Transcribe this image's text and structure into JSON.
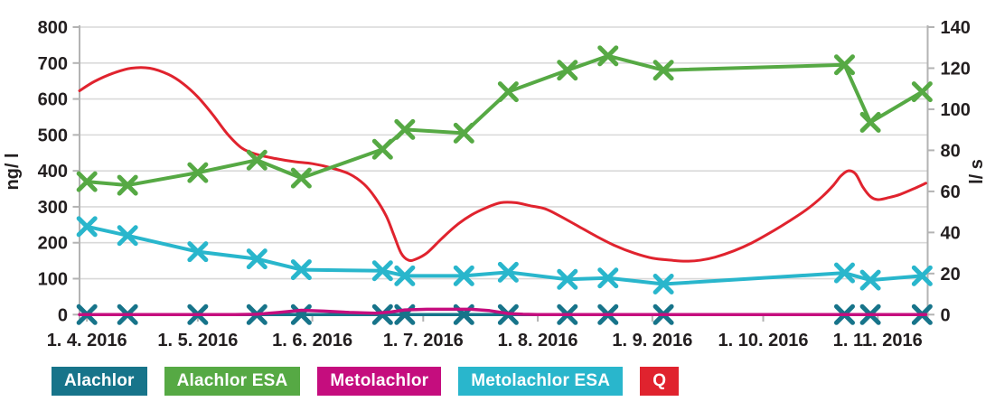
{
  "chart_data": {
    "type": "line",
    "title": "",
    "left_axis": {
      "label": "ng/ l",
      "min": 0,
      "max": 800,
      "tick_values": [
        0,
        100,
        200,
        300,
        400,
        500,
        600,
        700,
        800
      ]
    },
    "right_axis": {
      "label": "l/ s",
      "min": 0,
      "max": 140,
      "tick_values": [
        0,
        20,
        40,
        60,
        80,
        100,
        120,
        140
      ]
    },
    "x_axis": {
      "domain_days": [
        -2,
        227.5
      ],
      "tick_days": [
        0,
        30,
        61,
        91,
        122,
        153,
        183,
        214
      ],
      "tick_labels": [
        "1. 4. 2016",
        "1. 5. 2016",
        "1. 6. 2016",
        "1. 7. 2016",
        "1. 8. 2016",
        "1. 9. 2016",
        "1. 10. 2016",
        "1. 11. 2016"
      ],
      "grid": false
    },
    "grid": "horizontal",
    "sample_days": [
      0,
      11,
      30,
      46,
      58,
      80,
      86,
      102,
      114,
      130,
      141,
      156,
      205,
      212,
      226
    ],
    "series": [
      {
        "name": "Alachlor",
        "color": "#17748a",
        "axis": "left",
        "marker": "x",
        "line_width": 3.5,
        "values": [
          0,
          0,
          0,
          0,
          0,
          0,
          0,
          0,
          0,
          0,
          0,
          0,
          0,
          0,
          0
        ]
      },
      {
        "name": "Metolachlor",
        "color": "#c50d7e",
        "axis": "left",
        "marker": "none",
        "line_width": 3.5,
        "points": [
          [
            -2,
            0
          ],
          [
            20,
            0
          ],
          [
            40,
            0
          ],
          [
            46,
            1
          ],
          [
            52,
            6
          ],
          [
            58,
            12
          ],
          [
            64,
            10
          ],
          [
            71,
            6
          ],
          [
            78,
            4
          ],
          [
            82,
            7
          ],
          [
            86,
            13
          ],
          [
            92,
            15
          ],
          [
            98,
            15
          ],
          [
            104,
            15
          ],
          [
            109,
            11
          ],
          [
            114,
            3
          ],
          [
            118,
            1
          ],
          [
            122,
            0
          ],
          [
            150,
            0
          ],
          [
            180,
            0
          ],
          [
            210,
            0
          ],
          [
            227,
            0
          ]
        ]
      },
      {
        "name": "Metolachlor ESA",
        "color": "#29b6cc",
        "axis": "left",
        "marker": "x",
        "line_width": 4,
        "values": [
          245,
          220,
          175,
          155,
          125,
          122,
          108,
          108,
          118,
          98,
          102,
          85,
          116,
          96,
          108
        ]
      },
      {
        "name": "Q",
        "color": "#e0232e",
        "axis": "right",
        "marker": "none",
        "line_width": 3,
        "smooth": true,
        "points": [
          [
            -2,
            109
          ],
          [
            2,
            113.5
          ],
          [
            7,
            117.5
          ],
          [
            12,
            120
          ],
          [
            17,
            120
          ],
          [
            22,
            117
          ],
          [
            26,
            112.5
          ],
          [
            30,
            106
          ],
          [
            34,
            97.5
          ],
          [
            38,
            88
          ],
          [
            42,
            81
          ],
          [
            46,
            78
          ],
          [
            51,
            76
          ],
          [
            56,
            74.5
          ],
          [
            61,
            73.5
          ],
          [
            66,
            71.5
          ],
          [
            71,
            68.5
          ],
          [
            75,
            63.5
          ],
          [
            78,
            57
          ],
          [
            81,
            48
          ],
          [
            83,
            39
          ],
          [
            85,
            30
          ],
          [
            87,
            26.5
          ],
          [
            89,
            27
          ],
          [
            92,
            30
          ],
          [
            96,
            37
          ],
          [
            100,
            43.5
          ],
          [
            104,
            48.5
          ],
          [
            108,
            52
          ],
          [
            112,
            54.5
          ],
          [
            116,
            54.5
          ],
          [
            120,
            53
          ],
          [
            124,
            51.5
          ],
          [
            128,
            48
          ],
          [
            133,
            43
          ],
          [
            138,
            38
          ],
          [
            143,
            33.5
          ],
          [
            148,
            30
          ],
          [
            153,
            27.5
          ],
          [
            158,
            26.5
          ],
          [
            162,
            26
          ],
          [
            166,
            26.5
          ],
          [
            170,
            28
          ],
          [
            175,
            31
          ],
          [
            180,
            35
          ],
          [
            185,
            40
          ],
          [
            190,
            45.5
          ],
          [
            195,
            51.5
          ],
          [
            199,
            57.5
          ],
          [
            202,
            63
          ],
          [
            204,
            67.5
          ],
          [
            206,
            70
          ],
          [
            208,
            68.5
          ],
          [
            210,
            62
          ],
          [
            212,
            57.5
          ],
          [
            214,
            56
          ],
          [
            217,
            57
          ],
          [
            220,
            58.5
          ],
          [
            224,
            61.5
          ],
          [
            227,
            64
          ]
        ]
      },
      {
        "name": "Alachlor ESA",
        "color": "#56a944",
        "axis": "left",
        "marker": "x",
        "line_width": 4,
        "values": [
          370,
          360,
          395,
          430,
          380,
          460,
          515,
          505,
          620,
          680,
          720,
          680,
          695,
          535,
          620
        ]
      }
    ],
    "legend_position": "bottom"
  },
  "legend": {
    "items": [
      {
        "label": "Alachlor",
        "color": "#17748a"
      },
      {
        "label": "Alachlor ESA",
        "color": "#56a944"
      },
      {
        "label": "Metolachlor",
        "color": "#c50d7e"
      },
      {
        "label": "Metolachlor ESA",
        "color": "#29b6cc"
      },
      {
        "label": "Q",
        "color": "#e0232e"
      }
    ]
  },
  "style": {
    "grid_color": "#d9d9d9",
    "axis_color": "#b3b3b3",
    "text_color": "#231f20"
  }
}
